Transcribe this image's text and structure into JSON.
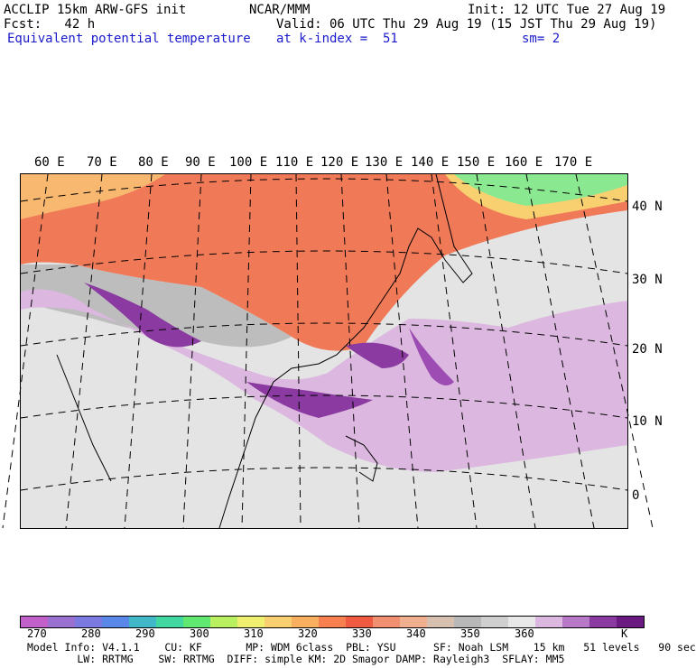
{
  "header": {
    "line1_left": "ACCLIP 15km ARW-GFS init",
    "line1_center": "NCAR/MMM",
    "line1_right": "Init: 12 UTC Tue 27 Aug 19",
    "fcst_label": "Fcst:   42 h",
    "valid": "Valid: 06 UTC Thu 29 Aug 19 (15 JST Thu 29 Aug 19)",
    "field": "Equivalent potential temperature",
    "level": "at k-index =  51",
    "smoothing": "sm= 2"
  },
  "map": {
    "lon_labels": [
      "60 E",
      "70 E",
      "80 E",
      "90 E",
      "100 E",
      "110 E",
      "120 E",
      "130 E",
      "140 E",
      "150 E",
      "160 E",
      "170 E"
    ],
    "lat_labels": [
      "40 N",
      "30 N",
      "20 N",
      "10 N",
      "0"
    ]
  },
  "colorbar": {
    "colors": [
      "#c060c8",
      "#9a70d0",
      "#7a7ae0",
      "#5a88e8",
      "#40b8c8",
      "#40d8a0",
      "#60e870",
      "#b8f060",
      "#f0f070",
      "#f8d070",
      "#f8b060",
      "#f88050",
      "#f05a40",
      "#f09070",
      "#f0b090",
      "#d8c0b0",
      "#b8b8b8",
      "#cfcfcf",
      "#e8e8e8",
      "#dcb8e0",
      "#b878c8",
      "#8a3aa0",
      "#6a1a80"
    ],
    "ticks": [
      "270",
      "280",
      "290",
      "300",
      "310",
      "320",
      "330",
      "340",
      "350",
      "360"
    ],
    "unit": "K"
  },
  "footer": {
    "line1": "Model Info: V4.1.1    CU: KF       MP: WDM 6class  PBL: YSU      SF: Noah LSM    15 km   51 levels   90 sec",
    "line2": "        LW: RRTMG    SW: RRTMG  DIFF: simple KM: 2D Smagor DAMP: Rayleigh3  SFLAY: MM5"
  }
}
